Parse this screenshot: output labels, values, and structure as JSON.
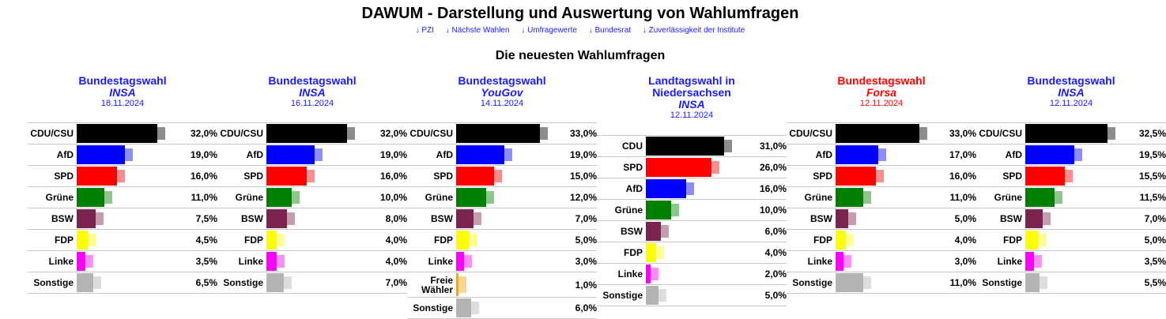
{
  "header": {
    "title": "DAWUM - Darstellung und Auswertung von Wahlumfragen",
    "subtitle": "Die neuesten Wahlumfragen",
    "links": [
      "↓ PZI",
      "↓ Nächste Wahlen",
      "↓ Umfragewerte",
      "↓ Bundesrat",
      "↓ Zuverlässigkeit der Institute"
    ]
  },
  "colors": {
    "CDU/CSU": "#000000",
    "CDU": "#000000",
    "AfD": "#0000ff",
    "SPD": "#ff0000",
    "Grüne": "#008000",
    "BSW": "#7b2450",
    "FDP": "#ffff00",
    "Linke": "#ff00ff",
    "Sonstige": "#b4b4b4",
    "Freie Wähler": "#ffa500",
    "link": "#1a1aff",
    "highlight": "#ff0000"
  },
  "polls": [
    {
      "title": "Bundestagswahl",
      "institute": "INSA",
      "date": "18.11.2024",
      "highlight": false,
      "rows": [
        {
          "party": "CDU/CSU",
          "value": 32.0,
          "label": "32,0%"
        },
        {
          "party": "AfD",
          "value": 19.0,
          "label": "19,0%"
        },
        {
          "party": "SPD",
          "value": 16.0,
          "label": "16,0%"
        },
        {
          "party": "Grüne",
          "value": 11.0,
          "label": "11,0%"
        },
        {
          "party": "BSW",
          "value": 7.5,
          "label": "7,5%"
        },
        {
          "party": "FDP",
          "value": 4.5,
          "label": "4,5%"
        },
        {
          "party": "Linke",
          "value": 3.5,
          "label": "3,5%"
        },
        {
          "party": "Sonstige",
          "value": 6.5,
          "label": "6,5%"
        }
      ]
    },
    {
      "title": "Bundestagswahl",
      "institute": "INSA",
      "date": "16.11.2024",
      "highlight": false,
      "rows": [
        {
          "party": "CDU/CSU",
          "value": 32.0,
          "label": "32,0%"
        },
        {
          "party": "AfD",
          "value": 19.0,
          "label": "19,0%"
        },
        {
          "party": "SPD",
          "value": 16.0,
          "label": "16,0%"
        },
        {
          "party": "Grüne",
          "value": 10.0,
          "label": "10,0%"
        },
        {
          "party": "BSW",
          "value": 8.0,
          "label": "8,0%"
        },
        {
          "party": "FDP",
          "value": 4.0,
          "label": "4,0%"
        },
        {
          "party": "Linke",
          "value": 4.0,
          "label": "4,0%"
        },
        {
          "party": "Sonstige",
          "value": 7.0,
          "label": "7,0%"
        }
      ]
    },
    {
      "title": "Bundestagswahl",
      "institute": "YouGov",
      "date": "14.11.2024",
      "highlight": false,
      "rows": [
        {
          "party": "CDU/CSU",
          "value": 33.0,
          "label": "33,0%"
        },
        {
          "party": "AfD",
          "value": 19.0,
          "label": "19,0%"
        },
        {
          "party": "SPD",
          "value": 15.0,
          "label": "15,0%"
        },
        {
          "party": "Grüne",
          "value": 12.0,
          "label": "12,0%"
        },
        {
          "party": "BSW",
          "value": 7.0,
          "label": "7,0%"
        },
        {
          "party": "FDP",
          "value": 5.0,
          "label": "5,0%"
        },
        {
          "party": "Linke",
          "value": 3.0,
          "label": "3,0%"
        },
        {
          "party": "Freie Wähler",
          "value": 1.0,
          "label": "1,0%"
        },
        {
          "party": "Sonstige",
          "value": 6.0,
          "label": "6,0%"
        }
      ]
    },
    {
      "title": "Landtagswahl in Niedersachsen",
      "institute": "INSA",
      "date": "12.11.2024",
      "highlight": false,
      "rows": [
        {
          "party": "CDU",
          "value": 31.0,
          "label": "31,0%"
        },
        {
          "party": "SPD",
          "value": 26.0,
          "label": "26,0%"
        },
        {
          "party": "AfD",
          "value": 16.0,
          "label": "16,0%"
        },
        {
          "party": "Grüne",
          "value": 10.0,
          "label": "10,0%"
        },
        {
          "party": "BSW",
          "value": 6.0,
          "label": "6,0%"
        },
        {
          "party": "FDP",
          "value": 4.0,
          "label": "4,0%"
        },
        {
          "party": "Linke",
          "value": 2.0,
          "label": "2,0%"
        },
        {
          "party": "Sonstige",
          "value": 5.0,
          "label": "5,0%"
        }
      ]
    },
    {
      "title": "Bundestagswahl",
      "institute": "Forsa",
      "date": "12.11.2024",
      "highlight": true,
      "rows": [
        {
          "party": "CDU/CSU",
          "value": 33.0,
          "label": "33,0%"
        },
        {
          "party": "AfD",
          "value": 17.0,
          "label": "17,0%"
        },
        {
          "party": "SPD",
          "value": 16.0,
          "label": "16,0%"
        },
        {
          "party": "Grüne",
          "value": 11.0,
          "label": "11,0%"
        },
        {
          "party": "BSW",
          "value": 5.0,
          "label": "5,0%"
        },
        {
          "party": "FDP",
          "value": 4.0,
          "label": "4,0%"
        },
        {
          "party": "Linke",
          "value": 3.0,
          "label": "3,0%"
        },
        {
          "party": "Sonstige",
          "value": 11.0,
          "label": "11,0%"
        }
      ]
    },
    {
      "title": "Bundestagswahl",
      "institute": "INSA",
      "date": "12.11.2024",
      "highlight": false,
      "rows": [
        {
          "party": "CDU/CSU",
          "value": 32.5,
          "label": "32,5%"
        },
        {
          "party": "AfD",
          "value": 19.5,
          "label": "19,5%"
        },
        {
          "party": "SPD",
          "value": 15.5,
          "label": "15,5%"
        },
        {
          "party": "Grüne",
          "value": 11.5,
          "label": "11,5%"
        },
        {
          "party": "BSW",
          "value": 7.0,
          "label": "7,0%"
        },
        {
          "party": "FDP",
          "value": 5.0,
          "label": "5,0%"
        },
        {
          "party": "Linke",
          "value": 3.5,
          "label": "3,5%"
        },
        {
          "party": "Sonstige",
          "value": 5.5,
          "label": "5,5%"
        }
      ]
    }
  ]
}
